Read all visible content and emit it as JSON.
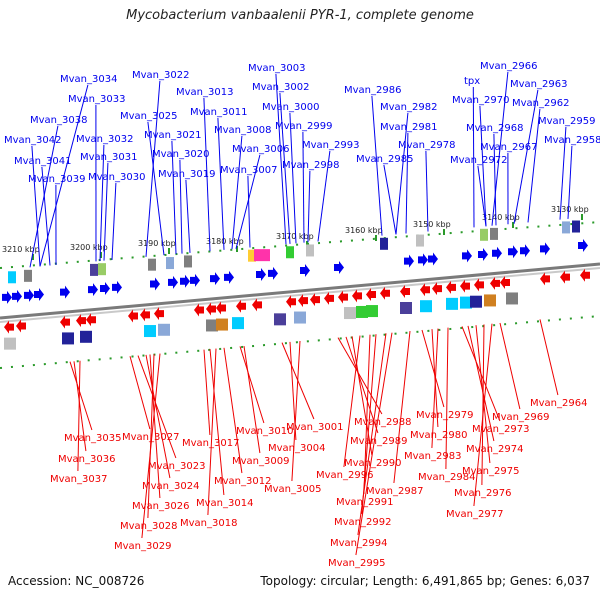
{
  "title": "Mycobacterium vanbaalenii PYR-1, complete genome",
  "footer": {
    "accession": "Accession: NC_008726",
    "summary": "Topology: circular; Length: 6,491,865 bp; Genes: 6,037"
  },
  "scale_ticks": [
    "3210 kbp",
    "3200 kbp",
    "3190 kbp",
    "3180 kbp",
    "3170 kbp",
    "3160 kbp",
    "3150 kbp",
    "3140 kbp",
    "3130 kbp"
  ],
  "colors": {
    "forward": "#0000ee",
    "reverse": "#ee0000",
    "backbone": "#7a7a7a",
    "tick": "#2a9a2a"
  },
  "top_labels": [
    "Mvan_3034",
    "Mvan_3033",
    "Mvan_3038",
    "Mvan_3032",
    "Mvan_3042",
    "Mvan_3031",
    "Mvan_3041",
    "Mvan_3039",
    "Mvan_3030",
    "Mvan_3022",
    "Mvan_3025",
    "Mvan_3021",
    "Mvan_3020",
    "Mvan_3019",
    "Mvan_3013",
    "Mvan_3011",
    "Mvan_3008",
    "Mvan_3006",
    "Mvan_3007",
    "Mvan_3003",
    "Mvan_3002",
    "Mvan_3000",
    "Mvan_2999",
    "Mvan_2998",
    "Mvan_2993",
    "Mvan_2986",
    "Mvan_2982",
    "Mvan_2981",
    "Mvan_2985",
    "Mvan_2978",
    "tpx",
    "Mvan_2966",
    "Mvan_2963",
    "Mvan_2970",
    "Mvan_2962",
    "Mvan_2968",
    "Mvan_2967",
    "Mvan_2959",
    "Mvan_2972",
    "Mvan_2958"
  ],
  "bottom_labels": [
    "Mvan_3035",
    "Mvan_3036",
    "Mvan_3037",
    "Mvan_3027",
    "Mvan_3023",
    "Mvan_3024",
    "Mvan_3026",
    "Mvan_3028",
    "Mvan_3029",
    "Mvan_3017",
    "Mvan_3014",
    "Mvan_3018",
    "Mvan_3010",
    "Mvan_3009",
    "Mvan_3012",
    "Mvan_3001",
    "Mvan_3004",
    "Mvan_3005",
    "Mvan_2988",
    "Mvan_2989",
    "Mvan_2990",
    "Mvan_2996",
    "Mvan_2991",
    "Mvan_2992",
    "Mvan_2994",
    "Mvan_2995",
    "Mvan_2987",
    "Mvan_2979",
    "Mvan_2980",
    "Mvan_2983",
    "Mvan_2984",
    "Mvan_2973",
    "Mvan_2974",
    "Mvan_2975",
    "Mvan_2976",
    "Mvan_2977",
    "Mvan_2969",
    "Mvan_2964"
  ]
}
